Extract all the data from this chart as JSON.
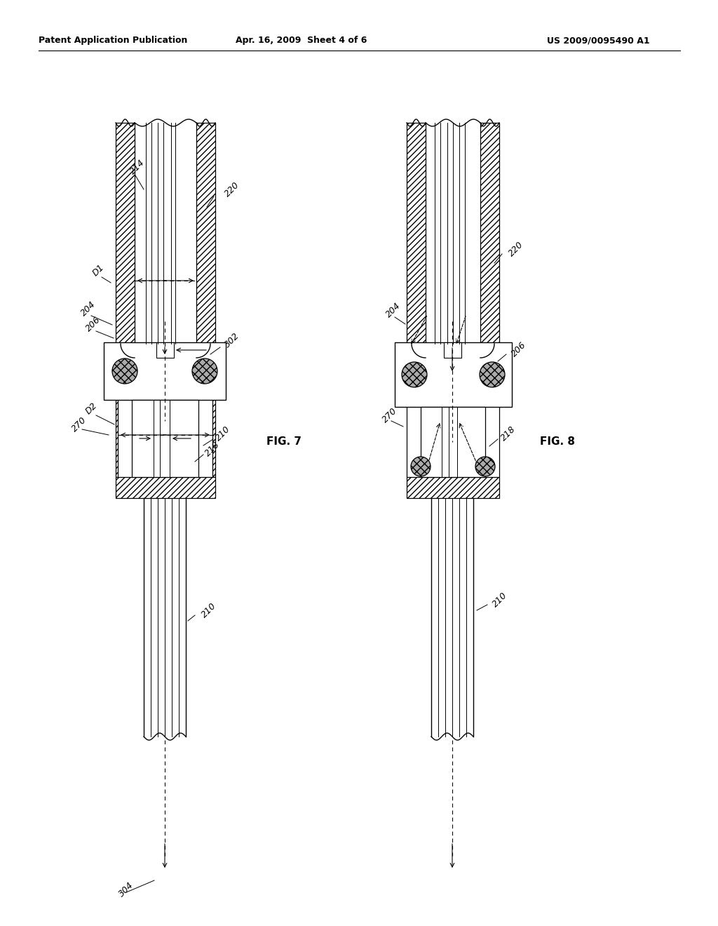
{
  "title_left": "Patent Application Publication",
  "title_mid": "Apr. 16, 2009  Sheet 4 of 6",
  "title_right": "US 2009/0095490 A1",
  "fig7_label": "FIG. 7",
  "fig8_label": "FIG. 8",
  "background": "#ffffff"
}
